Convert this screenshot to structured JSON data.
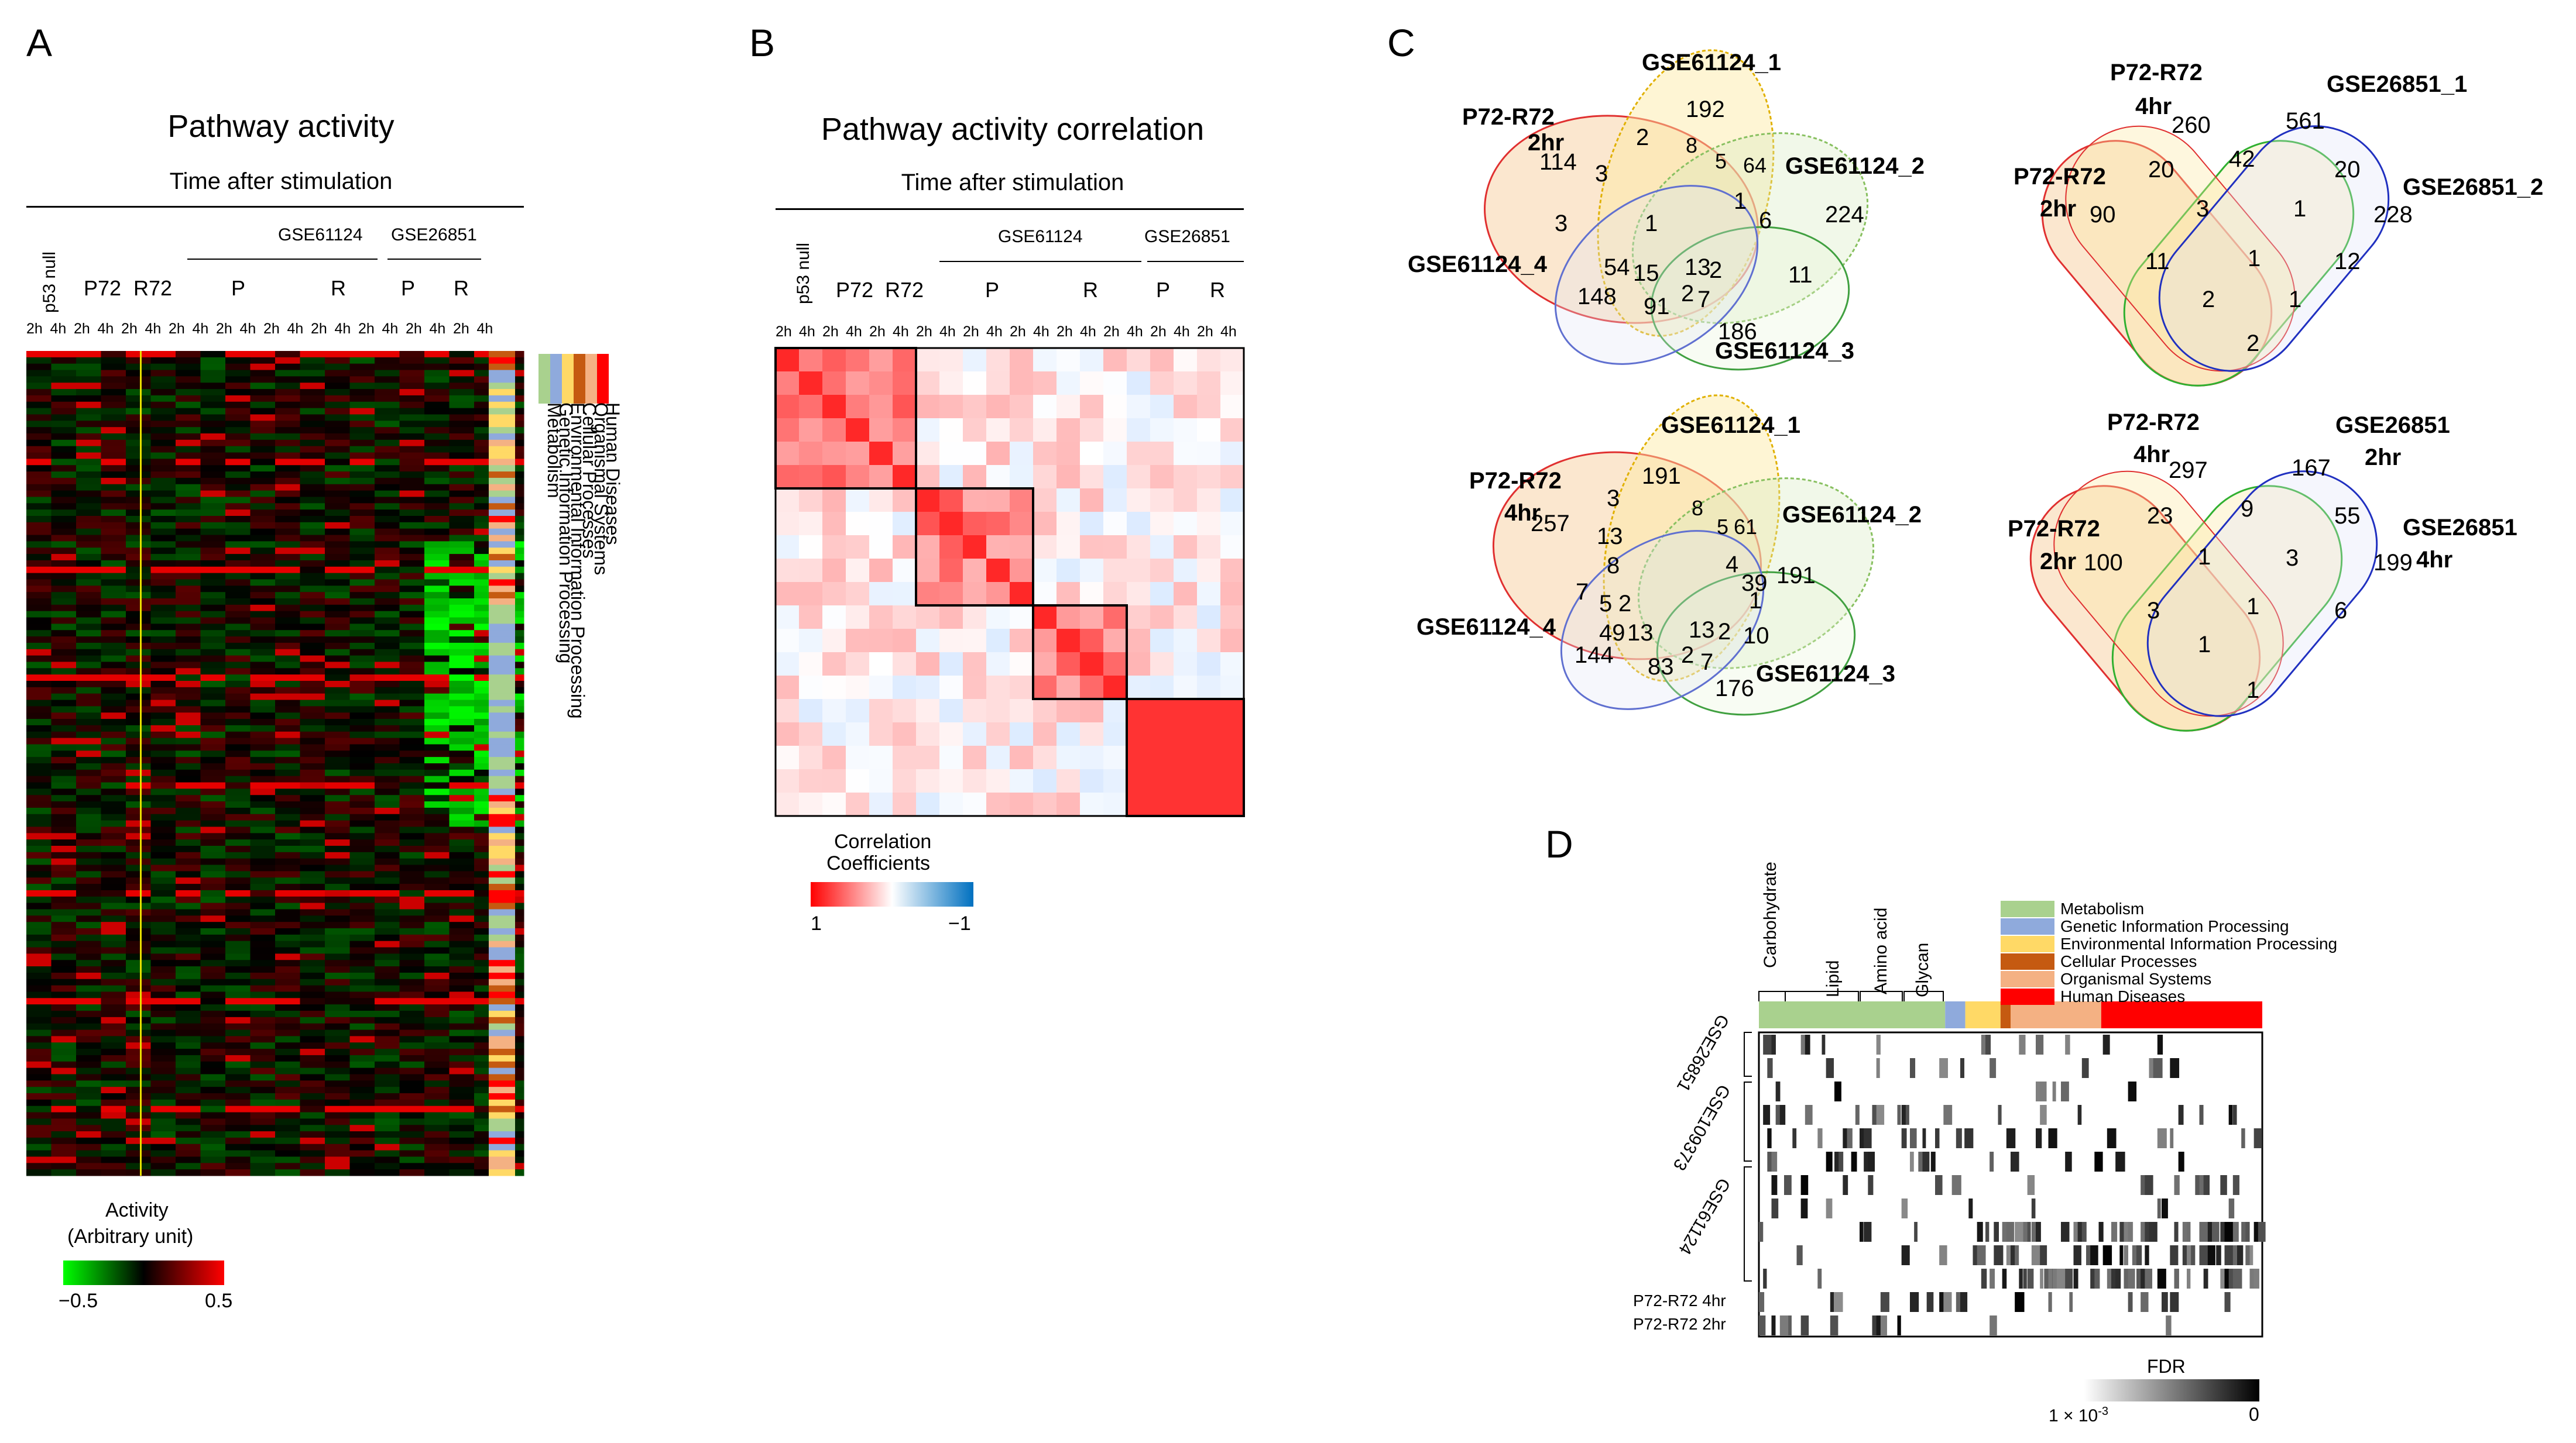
{
  "panels": {
    "a": "A",
    "b": "B",
    "c": "C",
    "d": "D"
  },
  "panelA": {
    "title": "Pathway activity",
    "subtitle": "Time after stimulation",
    "group_labels": {
      "p53null": "p53 null",
      "p72": "P72",
      "r72": "R72",
      "gse61124": "GSE61124",
      "gse26851": "GSE26851",
      "p1": "P",
      "r1": "R",
      "p2": "P",
      "r2": "R"
    },
    "time_labels": [
      "2h",
      "4h",
      "2h",
      "4h",
      "2h",
      "4h",
      "2h",
      "4h",
      "2h",
      "4h",
      "2h",
      "4h",
      "2h",
      "4h",
      "2h",
      "4h",
      "2h",
      "4h",
      "2h",
      "4h"
    ],
    "category_legend": [
      "Metabolism",
      "Genetic Information Processing",
      "Environmental Information Processing",
      "Cellular Processes",
      "Organismal Systems",
      "Human Diseases"
    ],
    "activity_title": "Activity",
    "activity_unit": "(Arbitrary unit)",
    "scale_min": "−0.5",
    "scale_max": "0.5"
  },
  "panelB": {
    "title": "Pathway activity correlation",
    "subtitle": "Time after stimulation",
    "group_labels": {
      "p53null": "p53 null",
      "p72": "P72",
      "r72": "R72",
      "gse61124": "GSE61124",
      "gse26851": "GSE26851",
      "p1": "P",
      "r1": "R",
      "p2": "P",
      "r2": "R"
    },
    "time_labels": [
      "2h",
      "4h",
      "2h",
      "4h",
      "2h",
      "4h",
      "2h",
      "4h",
      "2h",
      "4h",
      "2h",
      "4h",
      "2h",
      "4h",
      "2h",
      "4h",
      "2h",
      "4h",
      "2h",
      "4h"
    ],
    "legend_title": "Correlation",
    "legend_title2": "Coefficients",
    "legend_min": "1",
    "legend_max": "−1"
  },
  "panelC": {
    "venn1": {
      "sets": [
        "P72-R72",
        "2hr",
        "GSE61124_1",
        "GSE61124_2",
        "GSE61124_3",
        "GSE61124_4"
      ],
      "values": [
        "192",
        "2",
        "114",
        "3",
        "8",
        "5",
        "64",
        "224",
        "1",
        "6",
        "3",
        "1",
        "54",
        "15",
        "13",
        "2",
        "11",
        "148",
        "2",
        "7",
        "186",
        "91"
      ]
    },
    "venn2": {
      "sets": [
        "P72-R72",
        "4hr",
        "GSE26851_1",
        "P72-R72",
        "2hr",
        "GSE26851_2"
      ],
      "values": [
        "260",
        "561",
        "20",
        "42",
        "20",
        "90",
        "3",
        "1",
        "228",
        "11",
        "1",
        "12",
        "2",
        "1",
        "2"
      ]
    },
    "venn3": {
      "sets": [
        "P72-R72",
        "4hr",
        "GSE61124_1",
        "GSE61124_2",
        "GSE61124_3",
        "GSE61124_4"
      ],
      "values": [
        "191",
        "3",
        "257",
        "8",
        "5",
        "61",
        "13",
        "8",
        "4",
        "39",
        "191",
        "1",
        "7",
        "5",
        "2",
        "49",
        "13",
        "13",
        "2",
        "10",
        "144",
        "2",
        "7",
        "83",
        "176"
      ]
    },
    "venn4": {
      "sets": [
        "P72-R72",
        "4hr",
        "GSE26851",
        "2hr",
        "P72-R72",
        "2hr",
        "GSE26851",
        "4hr"
      ],
      "values": [
        "297",
        "167",
        "23",
        "9",
        "55",
        "100",
        "1",
        "3",
        "199",
        "3",
        "1",
        "6",
        "1",
        "1"
      ]
    }
  },
  "panelD": {
    "categories": [
      "Carbohydrate",
      "Lipid",
      "Amino acid",
      "Glycan"
    ],
    "legend": [
      "Metabolism",
      "Genetic Information Processing",
      "Environmental Information Processing",
      "Cellular Processes",
      "Organismal Systems",
      "Human Diseases"
    ],
    "rows": [
      "GSE26851",
      "GSE109373",
      "GSE61124",
      "P72-R72 4hr",
      "P72-R72 2hr"
    ],
    "fdr_title": "FDR",
    "fdr_min": "1 × 10",
    "fdr_exp": "-3",
    "fdr_max": "0"
  },
  "colors": {
    "metabolism": "#a9d18e",
    "genetic": "#8faadc",
    "environmental": "#ffd966",
    "cellular": "#c55a11",
    "organismal": "#f4b183",
    "disease": "#ff0000"
  },
  "chart_data": [
    {
      "type": "heatmap",
      "title": "Pathway activity",
      "value_range": [
        -0.5,
        0.5
      ],
      "columns": 20,
      "rows": 130
    },
    {
      "type": "heatmap",
      "title": "Pathway activity correlation",
      "value_range": [
        -1,
        1
      ],
      "columns": 20,
      "rows": 20
    },
    {
      "type": "heatmap",
      "title": "",
      "value_range": [
        0.001,
        0
      ],
      "rows": [
        "GSE26851",
        "GSE109373",
        "GSE61124",
        "P72-R72 4hr",
        "P72-R72 2hr"
      ]
    }
  ]
}
